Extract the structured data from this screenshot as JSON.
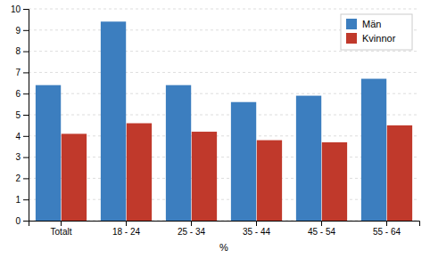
{
  "chart_data": {
    "type": "bar",
    "categories": [
      "Totalt",
      "18 - 24",
      "25 - 34",
      "35 - 44",
      "45 - 54",
      "55 - 64"
    ],
    "series": [
      {
        "name": "Män",
        "color": "#3C7EBF",
        "values": [
          6.4,
          9.4,
          6.4,
          5.6,
          5.9,
          6.7
        ]
      },
      {
        "name": "Kvinnor",
        "color": "#C0392B",
        "values": [
          4.1,
          4.6,
          4.2,
          3.8,
          3.7,
          4.5
        ]
      }
    ],
    "xlabel": "%",
    "ylim": [
      0,
      10
    ],
    "yticks": [
      0,
      1,
      2,
      3,
      4,
      5,
      6,
      7,
      8,
      9,
      10
    ],
    "grid": true,
    "legend": "top-right"
  }
}
